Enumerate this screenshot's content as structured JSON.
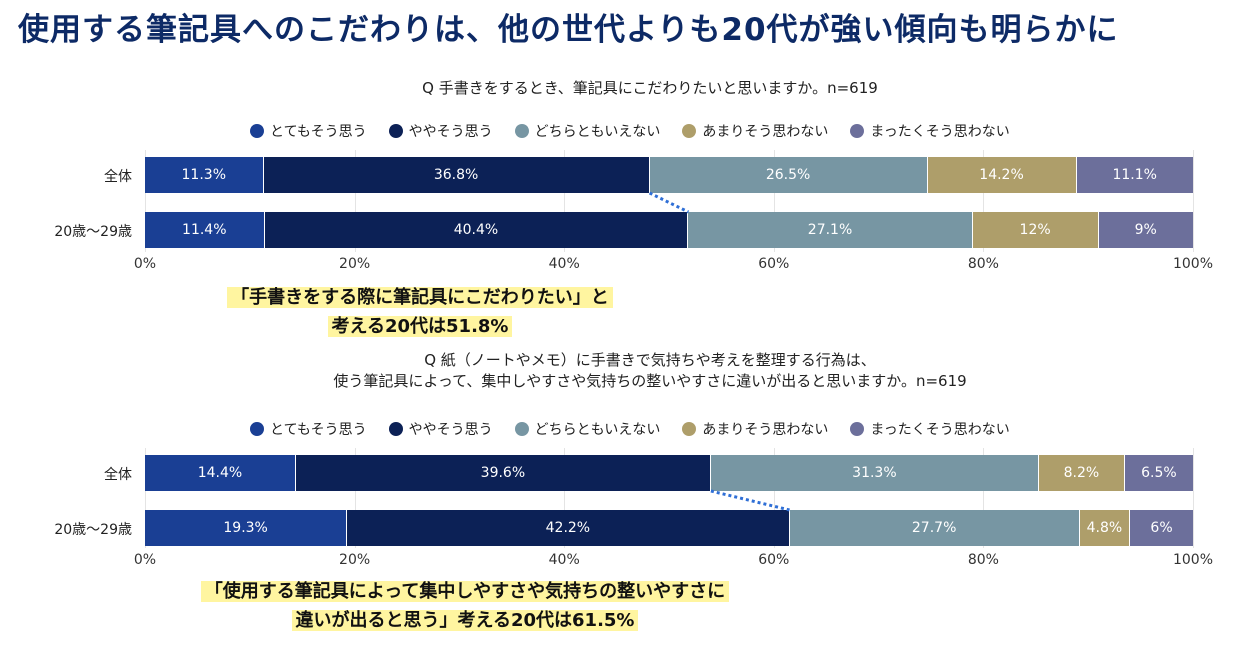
{
  "page_title": "使用する筆記具へのこだわりは、他の世代よりも20代が強い傾向も明らかに",
  "legend": [
    {
      "label": "とてもそう思う",
      "color": "#1a3f94"
    },
    {
      "label": "ややそう思う",
      "color": "#0c2156"
    },
    {
      "label": "どちらともいえない",
      "color": "#7796a3"
    },
    {
      "label": "あまりそう思わない",
      "color": "#ae9e6a"
    },
    {
      "label": "まったくそう思わない",
      "color": "#6c6f9b"
    }
  ],
  "chart_data": [
    {
      "type": "bar",
      "orientation": "horizontal-stacked-100",
      "title_lines": [
        "Q 手書きをするとき、筆記具にこだわりたいと思いますか。n=619"
      ],
      "categories": [
        "全体",
        "20歳～29歳"
      ],
      "series": [
        {
          "name": "とてもそう思う",
          "values": [
            11.3,
            11.4
          ],
          "labels": [
            "11.3%",
            "11.4%"
          ]
        },
        {
          "name": "ややそう思う",
          "values": [
            36.8,
            40.4
          ],
          "labels": [
            "36.8%",
            "40.4%"
          ]
        },
        {
          "name": "どちらともいえない",
          "values": [
            26.5,
            27.1
          ],
          "labels": [
            "26.5%",
            "27.1%"
          ]
        },
        {
          "name": "あまりそう思わない",
          "values": [
            14.2,
            12
          ],
          "labels": [
            "14.2%",
            "12%"
          ]
        },
        {
          "name": "まったくそう思わない",
          "values": [
            11.1,
            9
          ],
          "labels": [
            "11.1%",
            "9%"
          ]
        }
      ],
      "xlim": [
        0,
        100
      ],
      "xticks": [
        "0%",
        "20%",
        "40%",
        "60%",
        "80%",
        "100%"
      ],
      "grid": true,
      "legend_position": "top",
      "annotation_lines": [
        "「手書きをする際に筆記具にこだわりたい」と",
        "考える20代は51.8%"
      ]
    },
    {
      "type": "bar",
      "orientation": "horizontal-stacked-100",
      "title_lines": [
        "Q 紙（ノートやメモ）に手書きで気持ちや考えを整理する行為は、",
        "使う筆記具によって、集中しやすさや気持ちの整いやすさに違いが出ると思いますか。n=619"
      ],
      "categories": [
        "全体",
        "20歳～29歳"
      ],
      "series": [
        {
          "name": "とてもそう思う",
          "values": [
            14.4,
            19.3
          ],
          "labels": [
            "14.4%",
            "19.3%"
          ]
        },
        {
          "name": "ややそう思う",
          "values": [
            39.6,
            42.2
          ],
          "labels": [
            "39.6%",
            "42.2%"
          ]
        },
        {
          "name": "どちらともいえない",
          "values": [
            31.3,
            27.7
          ],
          "labels": [
            "31.3%",
            "27.7%"
          ]
        },
        {
          "name": "あまりそう思わない",
          "values": [
            8.2,
            4.8
          ],
          "labels": [
            "8.2%",
            "4.8%"
          ]
        },
        {
          "name": "まったくそう思わない",
          "values": [
            6.5,
            6
          ],
          "labels": [
            "6.5%",
            "6%"
          ]
        }
      ],
      "xlim": [
        0,
        100
      ],
      "xticks": [
        "0%",
        "20%",
        "40%",
        "60%",
        "80%",
        "100%"
      ],
      "grid": true,
      "legend_position": "top",
      "annotation_lines": [
        "「使用する筆記具によって集中しやすさや気持ちの整いやすさに",
        "違いが出ると思う」考える20代は61.5%"
      ]
    }
  ]
}
